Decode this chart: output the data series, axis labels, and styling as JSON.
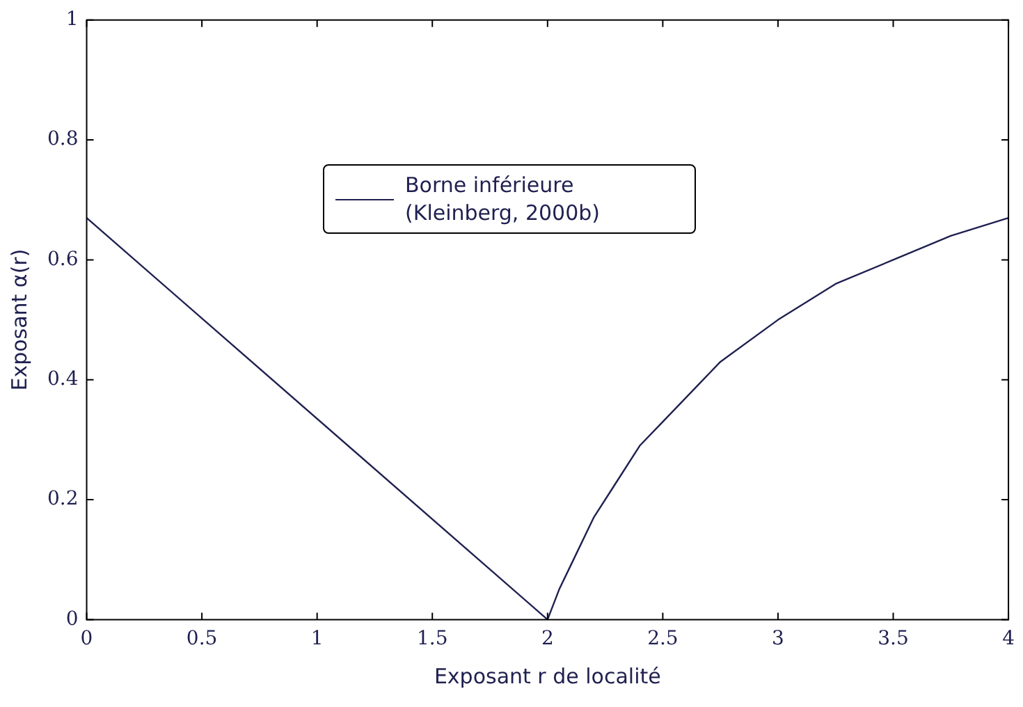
{
  "chart_data": {
    "type": "line",
    "xlabel": "Exposant r de localité",
    "ylabel": "Exposant α(r)",
    "xlim": [
      0,
      4
    ],
    "xticks": [
      0,
      0.5,
      1,
      1.5,
      2,
      2.5,
      3,
      3.5,
      4
    ],
    "ylim": [
      0,
      1
    ],
    "yticks": [
      0,
      0.2,
      0.4,
      0.6,
      0.8,
      1
    ],
    "grid": false,
    "legend": "top",
    "marker": "none",
    "line_style": "solid",
    "series": [
      {
        "name": "Borne inférieure (Kleinberg, 2000b)",
        "color": "#1f2050",
        "x": [
          0,
          2,
          2.05,
          2.1,
          2.2,
          2.3,
          2.4,
          2.5,
          2.75,
          3,
          3.25,
          3.5,
          3.75,
          4
        ],
        "values": [
          0.67,
          0,
          0.05,
          0.09,
          0.17,
          0.23,
          0.29,
          0.33,
          0.43,
          0.5,
          0.56,
          0.6,
          0.64,
          0.67
        ]
      }
    ]
  }
}
